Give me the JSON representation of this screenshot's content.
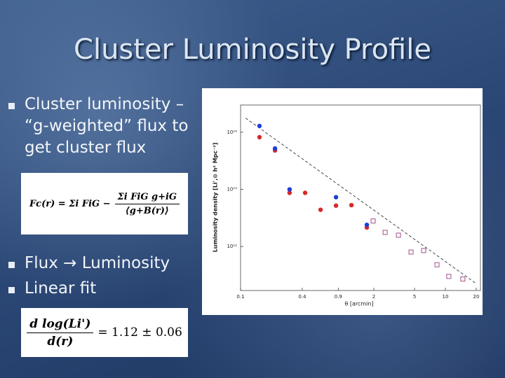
{
  "slide": {
    "title": "Cluster Luminosity Profile",
    "bullets": [
      "Cluster luminosity – “g-weighted” flux to get cluster flux",
      "Flux → Luminosity",
      "Linear fit"
    ],
    "equations": [
      {
        "lhs": "Fc(r) = Σi FiG −",
        "numerator": "Σi FiG g+iG",
        "denominator": "⟨g+B(r)⟩"
      },
      {
        "numerator": "d log(Li')",
        "denominator": "d(r)",
        "rhs": "= 1.12 ± 0.06"
      }
    ]
  },
  "chart_data": {
    "type": "scatter",
    "x_label": "θ [arcmin]",
    "y_label": "Luminosity density [Li',⊙ h² Mpc⁻²]",
    "log_x": true,
    "log_y": true,
    "xlim": [
      0.1,
      22
    ],
    "ylim": [
      170000000000.0,
      300000000000000.0
    ],
    "xticks": [
      0.1,
      0.4,
      0.9,
      2,
      5,
      10,
      20
    ],
    "yticks": [
      {
        "value": 1000000000000.0,
        "label": "10¹²"
      },
      {
        "value": 10000000000000.0,
        "label": "10¹³"
      },
      {
        "value": 100000000000000.0,
        "label": "10¹⁴"
      }
    ],
    "series": [
      {
        "color": "#d42a2a",
        "marker": "circle",
        "x": [
          0.153,
          0.217,
          0.301,
          0.427,
          0.604,
          0.855,
          1.21,
          1.71
        ],
        "values": [
          82000000000000.0,
          48000000000000.0,
          8700000000000.0,
          8700000000000.0,
          4400000000000.0,
          5200000000000.0,
          5300000000000.0,
          2150000000000.0
        ]
      },
      {
        "color": "#1f3fd6",
        "marker": "circle",
        "x": [
          0.153,
          0.217,
          0.301,
          0.855,
          1.71
        ],
        "values": [
          129000000000000.0,
          52000000000000.0,
          10000000000000.0,
          7300000000000.0,
          2400000000000.0
        ]
      },
      {
        "color": "#a0508a",
        "marker": "square",
        "x": [
          1.97,
          2.58,
          3.48,
          4.62,
          6.13,
          8.28,
          10.8,
          14.8
        ],
        "values": [
          2800000000000.0,
          1770000000000.0,
          1580000000000.0,
          800000000000.0,
          850000000000.0,
          480000000000.0,
          300000000000.0,
          270000000000.0
        ]
      }
    ],
    "fit": {
      "color": "#333333",
      "dashed": true,
      "x": [
        0.112,
        20.3
      ],
      "values": [
        177000000000000.0,
        220000000000.0
      ]
    }
  }
}
